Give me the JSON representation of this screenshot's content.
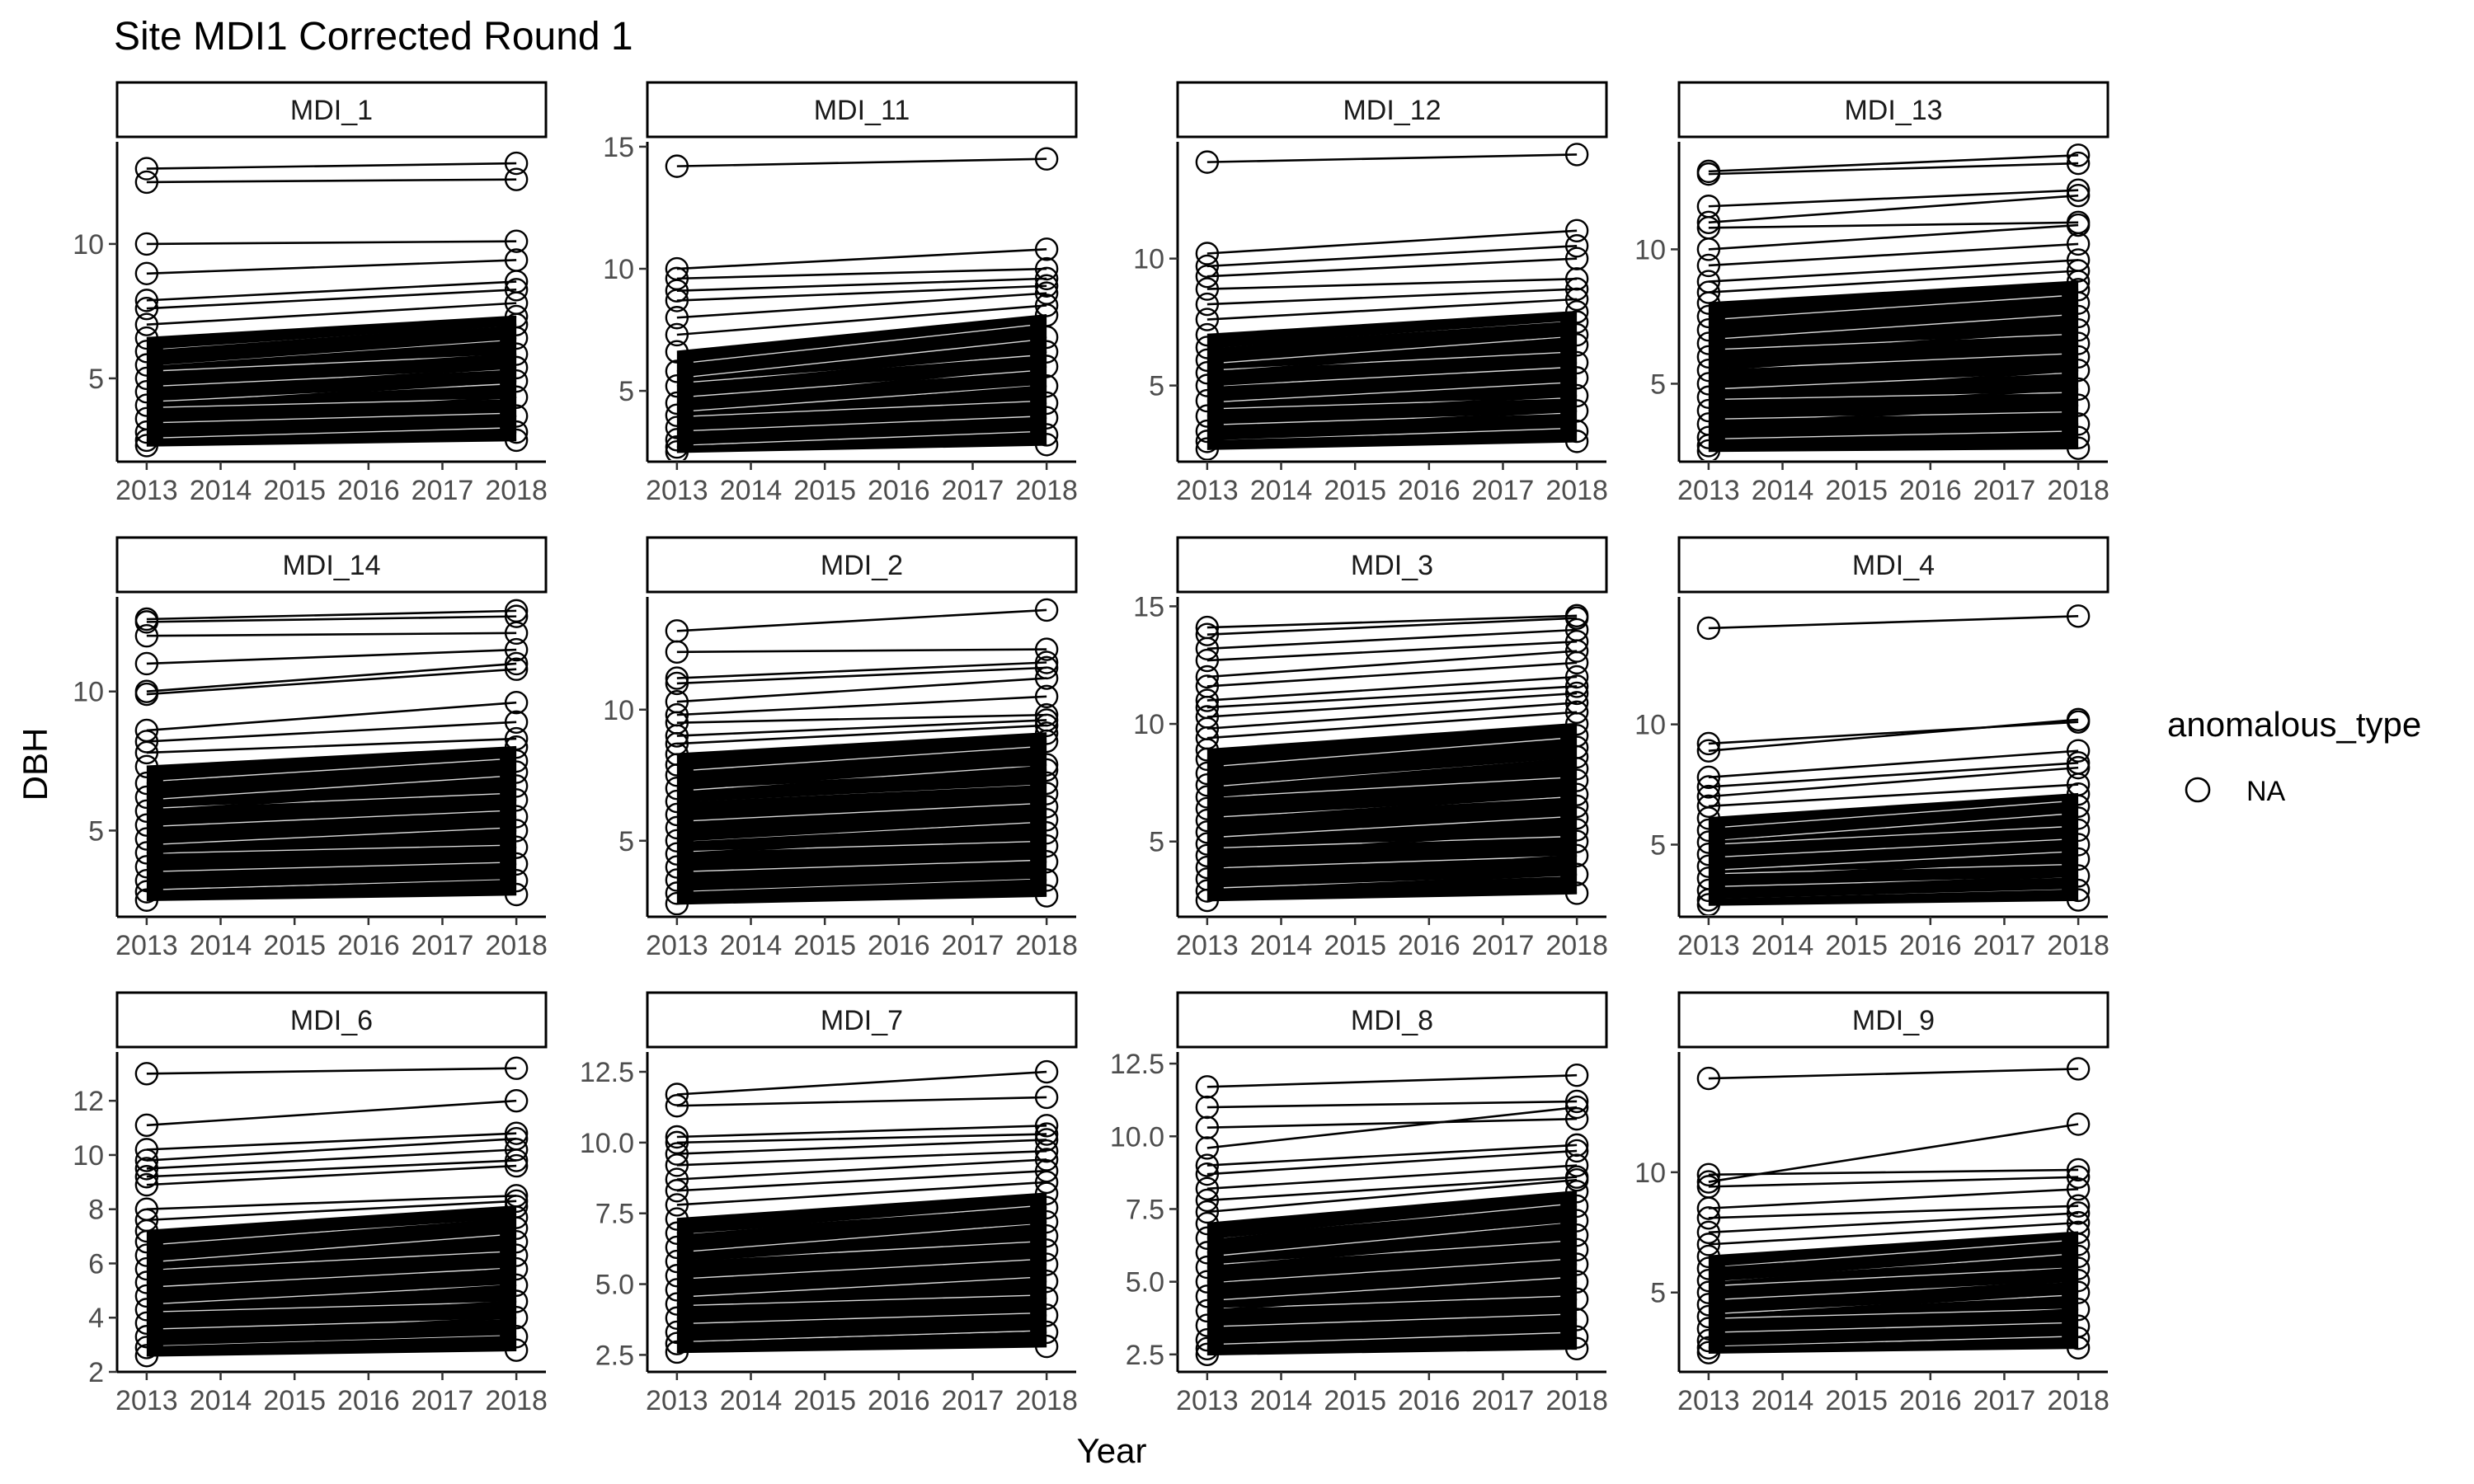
{
  "chart_data": {
    "type": "line",
    "title": "Site MDI1 Corrected Round 1",
    "xlabel": "Year",
    "ylabel": "DBH",
    "x_ticks": [
      "2013",
      "2014",
      "2015",
      "2016",
      "2017",
      "2018"
    ],
    "xlim": [
      2012.6,
      2018.4
    ],
    "legend": {
      "title": "anomalous_type",
      "entries": [
        "NA"
      ],
      "position": "right"
    },
    "panels": [
      {
        "label": "MDI_1",
        "ylim": [
          1.9,
          13.8
        ],
        "yticks": [
          5,
          10
        ],
        "ytick_labels": [
          "5",
          "10"
        ],
        "series": [
          [
            12.8,
            13.0
          ],
          [
            12.3,
            12.4
          ],
          [
            10.0,
            10.1
          ],
          [
            8.9,
            9.4
          ],
          [
            7.9,
            8.6
          ],
          [
            7.6,
            8.3
          ],
          [
            7.0,
            7.8
          ],
          [
            6.5,
            7.3
          ],
          [
            6.0,
            7.0
          ],
          [
            5.5,
            6.5
          ],
          [
            5.0,
            5.9
          ],
          [
            4.5,
            5.4
          ],
          [
            4.0,
            4.9
          ],
          [
            3.5,
            4.3
          ],
          [
            3.0,
            3.6
          ],
          [
            2.7,
            3.0
          ],
          [
            2.5,
            2.7
          ]
        ]
      },
      {
        "label": "MDI_11",
        "ylim": [
          2.1,
          15.2
        ],
        "yticks": [
          5,
          10,
          15
        ],
        "ytick_labels": [
          "5",
          "10",
          "15"
        ],
        "series": [
          [
            14.2,
            14.5
          ],
          [
            10.0,
            10.8
          ],
          [
            9.6,
            10.0
          ],
          [
            9.1,
            9.6
          ],
          [
            8.7,
            9.3
          ],
          [
            8.0,
            9.0
          ],
          [
            7.3,
            8.5
          ],
          [
            6.6,
            8.1
          ],
          [
            5.8,
            7.2
          ],
          [
            5.2,
            6.6
          ],
          [
            4.5,
            6.0
          ],
          [
            4.0,
            5.2
          ],
          [
            3.5,
            4.5
          ],
          [
            3.0,
            3.9
          ],
          [
            2.7,
            3.2
          ],
          [
            2.5,
            2.8
          ]
        ]
      },
      {
        "label": "MDI_12",
        "ylim": [
          2.0,
          14.6
        ],
        "yticks": [
          5,
          10
        ],
        "ytick_labels": [
          "5",
          "10"
        ],
        "series": [
          [
            13.8,
            14.1
          ],
          [
            10.2,
            11.1
          ],
          [
            9.7,
            10.5
          ],
          [
            9.3,
            10.0
          ],
          [
            8.8,
            9.2
          ],
          [
            8.2,
            8.8
          ],
          [
            7.6,
            8.4
          ],
          [
            7.0,
            7.9
          ],
          [
            6.5,
            7.5
          ],
          [
            6.0,
            7.0
          ],
          [
            5.5,
            6.6
          ],
          [
            5.0,
            5.9
          ],
          [
            4.4,
            5.3
          ],
          [
            3.8,
            4.6
          ],
          [
            3.2,
            4.0
          ],
          [
            2.8,
            3.2
          ],
          [
            2.5,
            2.8
          ]
        ]
      },
      {
        "label": "MDI_13",
        "ylim": [
          2.1,
          14.0
        ],
        "yticks": [
          5,
          10
        ],
        "ytick_labels": [
          "5",
          "10"
        ],
        "series": [
          [
            12.9,
            13.5
          ],
          [
            12.8,
            13.2
          ],
          [
            11.6,
            12.2
          ],
          [
            11.0,
            12.0
          ],
          [
            10.8,
            11.0
          ],
          [
            10.0,
            10.9
          ],
          [
            9.4,
            10.2
          ],
          [
            8.8,
            9.6
          ],
          [
            8.4,
            9.2
          ],
          [
            8.0,
            8.8
          ],
          [
            7.5,
            8.5
          ],
          [
            7.0,
            8.0
          ],
          [
            6.5,
            7.5
          ],
          [
            6.0,
            7.0
          ],
          [
            5.5,
            6.5
          ],
          [
            5.0,
            6.0
          ],
          [
            4.5,
            5.5
          ],
          [
            4.0,
            4.8
          ],
          [
            3.5,
            4.2
          ],
          [
            3.0,
            3.5
          ],
          [
            2.7,
            3.0
          ],
          [
            2.5,
            2.6
          ]
        ]
      },
      {
        "label": "MDI_14",
        "ylim": [
          1.9,
          13.4
        ],
        "yticks": [
          5,
          10
        ],
        "ytick_labels": [
          "5",
          "10"
        ],
        "series": [
          [
            12.6,
            12.9
          ],
          [
            12.5,
            12.7
          ],
          [
            12.0,
            12.1
          ],
          [
            11.0,
            11.5
          ],
          [
            10.0,
            11.0
          ],
          [
            9.9,
            10.8
          ],
          [
            8.6,
            9.6
          ],
          [
            8.2,
            8.9
          ],
          [
            7.8,
            8.3
          ],
          [
            7.3,
            8.0
          ],
          [
            6.7,
            7.5
          ],
          [
            6.2,
            7.1
          ],
          [
            5.7,
            6.6
          ],
          [
            5.2,
            6.1
          ],
          [
            4.7,
            5.5
          ],
          [
            4.2,
            5.0
          ],
          [
            3.7,
            4.4
          ],
          [
            3.2,
            3.8
          ],
          [
            2.8,
            3.2
          ],
          [
            2.5,
            2.7
          ]
        ]
      },
      {
        "label": "MDI_2",
        "ylim": [
          2.1,
          14.3
        ],
        "yticks": [
          5,
          10
        ],
        "ytick_labels": [
          "5",
          "10"
        ],
        "series": [
          [
            13.0,
            13.8
          ],
          [
            12.2,
            12.3
          ],
          [
            11.2,
            11.8
          ],
          [
            11.0,
            11.6
          ],
          [
            10.3,
            11.2
          ],
          [
            9.8,
            10.5
          ],
          [
            9.5,
            9.8
          ],
          [
            9.0,
            9.6
          ],
          [
            8.7,
            9.4
          ],
          [
            8.3,
            9.1
          ],
          [
            7.9,
            8.8
          ],
          [
            7.5,
            7.9
          ],
          [
            7.0,
            7.7
          ],
          [
            6.5,
            7.2
          ],
          [
            6.0,
            6.8
          ],
          [
            5.5,
            6.3
          ],
          [
            5.0,
            5.8
          ],
          [
            4.5,
            5.3
          ],
          [
            4.0,
            4.8
          ],
          [
            3.5,
            4.2
          ],
          [
            3.0,
            3.5
          ],
          [
            2.6,
            2.9
          ]
        ]
      },
      {
        "label": "MDI_3",
        "ylim": [
          1.8,
          15.4
        ],
        "yticks": [
          5,
          10,
          15
        ],
        "ytick_labels": [
          "5",
          "10",
          "15"
        ],
        "series": [
          [
            14.1,
            14.6
          ],
          [
            13.8,
            14.5
          ],
          [
            13.2,
            14.0
          ],
          [
            12.7,
            13.5
          ],
          [
            12.0,
            13.1
          ],
          [
            11.6,
            12.6
          ],
          [
            11.0,
            12.0
          ],
          [
            10.7,
            11.6
          ],
          [
            10.3,
            11.3
          ],
          [
            9.8,
            10.9
          ],
          [
            9.4,
            10.5
          ],
          [
            8.9,
            10.0
          ],
          [
            8.5,
            9.5
          ],
          [
            7.9,
            9.0
          ],
          [
            7.4,
            8.6
          ],
          [
            6.9,
            8.1
          ],
          [
            6.4,
            7.6
          ],
          [
            5.9,
            7.0
          ],
          [
            5.4,
            6.5
          ],
          [
            4.9,
            6.0
          ],
          [
            4.4,
            5.5
          ],
          [
            3.9,
            5.0
          ],
          [
            3.4,
            4.4
          ],
          [
            2.9,
            3.6
          ],
          [
            2.5,
            2.8
          ]
        ]
      },
      {
        "label": "MDI_4",
        "ylim": [
          2.0,
          15.3
        ],
        "yticks": [
          5,
          10
        ],
        "ytick_labels": [
          "5",
          "10"
        ],
        "series": [
          [
            14.0,
            14.5
          ],
          [
            9.2,
            10.1
          ],
          [
            8.9,
            10.2
          ],
          [
            7.8,
            8.9
          ],
          [
            7.4,
            8.4
          ],
          [
            7.0,
            8.2
          ],
          [
            6.6,
            7.5
          ],
          [
            6.1,
            7.1
          ],
          [
            5.6,
            6.6
          ],
          [
            5.1,
            6.1
          ],
          [
            4.6,
            5.6
          ],
          [
            4.1,
            5.0
          ],
          [
            3.6,
            4.4
          ],
          [
            3.1,
            3.7
          ],
          [
            2.7,
            3.1
          ],
          [
            2.5,
            2.7
          ]
        ]
      },
      {
        "label": "MDI_6",
        "ylim": [
          2.0,
          13.8
        ],
        "yticks": [
          2,
          4,
          6,
          8,
          10,
          12
        ],
        "ytick_labels": [
          "2",
          "4",
          "6",
          "8",
          "10",
          "12"
        ],
        "series": [
          [
            13.0,
            13.2
          ],
          [
            11.1,
            12.0
          ],
          [
            10.2,
            10.8
          ],
          [
            9.8,
            10.6
          ],
          [
            9.5,
            10.2
          ],
          [
            9.2,
            9.8
          ],
          [
            8.9,
            9.6
          ],
          [
            8.0,
            8.5
          ],
          [
            7.6,
            8.3
          ],
          [
            7.2,
            8.1
          ],
          [
            6.8,
            7.7
          ],
          [
            6.3,
            7.3
          ],
          [
            5.8,
            6.8
          ],
          [
            5.3,
            6.3
          ],
          [
            4.8,
            5.8
          ],
          [
            4.3,
            5.2
          ],
          [
            3.8,
            4.6
          ],
          [
            3.3,
            4.0
          ],
          [
            2.9,
            3.3
          ],
          [
            2.6,
            2.8
          ]
        ]
      },
      {
        "label": "MDI_7",
        "ylim": [
          1.9,
          13.2
        ],
        "yticks": [
          2.5,
          5.0,
          7.5,
          10.0,
          12.5
        ],
        "ytick_labels": [
          "2.5",
          "5.0",
          "7.5",
          "10.0",
          "12.5"
        ],
        "series": [
          [
            11.7,
            12.5
          ],
          [
            11.3,
            11.6
          ],
          [
            10.2,
            10.6
          ],
          [
            10.0,
            10.3
          ],
          [
            9.6,
            10.1
          ],
          [
            9.2,
            9.7
          ],
          [
            8.7,
            9.4
          ],
          [
            8.3,
            9.0
          ],
          [
            7.8,
            8.6
          ],
          [
            7.3,
            8.2
          ],
          [
            6.8,
            7.7
          ],
          [
            6.3,
            7.2
          ],
          [
            5.8,
            6.7
          ],
          [
            5.3,
            6.2
          ],
          [
            4.8,
            5.7
          ],
          [
            4.3,
            5.1
          ],
          [
            3.8,
            4.5
          ],
          [
            3.3,
            3.9
          ],
          [
            2.9,
            3.3
          ],
          [
            2.6,
            2.8
          ]
        ]
      },
      {
        "label": "MDI_8",
        "ylim": [
          1.9,
          12.9
        ],
        "yticks": [
          2.5,
          5.0,
          7.5,
          10.0,
          12.5
        ],
        "ytick_labels": [
          "2.5",
          "5.0",
          "7.5",
          "10.0",
          "12.5"
        ],
        "series": [
          [
            11.7,
            12.1
          ],
          [
            11.0,
            11.2
          ],
          [
            10.3,
            10.6
          ],
          [
            9.6,
            11.0
          ],
          [
            9.0,
            9.7
          ],
          [
            8.7,
            9.5
          ],
          [
            8.2,
            9.0
          ],
          [
            7.8,
            8.6
          ],
          [
            7.4,
            8.5
          ],
          [
            7.0,
            8.1
          ],
          [
            6.5,
            7.6
          ],
          [
            6.0,
            7.1
          ],
          [
            5.5,
            6.6
          ],
          [
            5.0,
            6.1
          ],
          [
            4.5,
            5.6
          ],
          [
            4.0,
            5.0
          ],
          [
            3.5,
            4.4
          ],
          [
            3.0,
            3.7
          ],
          [
            2.7,
            3.1
          ],
          [
            2.5,
            2.7
          ]
        ]
      },
      {
        "label": "MDI_9",
        "ylim": [
          1.7,
          15.0
        ],
        "yticks": [
          5,
          10
        ],
        "ytick_labels": [
          "5",
          "10"
        ],
        "series": [
          [
            13.9,
            14.3
          ],
          [
            9.9,
            10.1
          ],
          [
            9.6,
            12.0
          ],
          [
            9.4,
            9.8
          ],
          [
            8.5,
            9.3
          ],
          [
            8.1,
            8.6
          ],
          [
            7.5,
            8.3
          ],
          [
            7.0,
            7.9
          ],
          [
            6.5,
            7.5
          ],
          [
            6.0,
            7.0
          ],
          [
            5.5,
            6.5
          ],
          [
            5.0,
            6.0
          ],
          [
            4.5,
            5.5
          ],
          [
            4.0,
            5.0
          ],
          [
            3.5,
            4.3
          ],
          [
            3.0,
            3.6
          ],
          [
            2.7,
            3.1
          ],
          [
            2.5,
            2.7
          ]
        ]
      }
    ]
  }
}
